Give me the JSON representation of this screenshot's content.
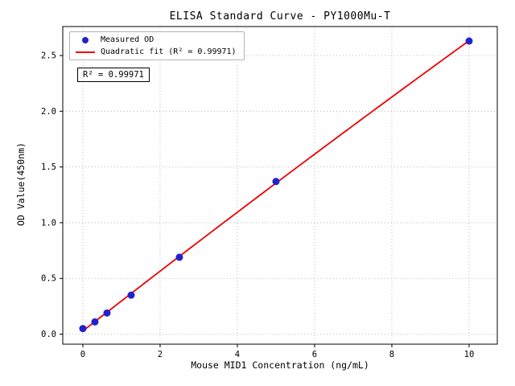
{
  "chart_data": {
    "type": "scatter",
    "title": "ELISA Standard Curve - PY1000Mu-T",
    "xlabel": "Mouse MID1 Concentration (ng/mL)",
    "ylabel": "OD Value(450nm)",
    "series": [
      {
        "name": "Measured OD",
        "type": "scatter",
        "color": "#2222cc",
        "x": [
          0,
          0.3125,
          0.625,
          1.25,
          2.5,
          5,
          10
        ],
        "y": [
          0.05,
          0.11,
          0.19,
          0.35,
          0.69,
          1.37,
          2.63
        ]
      },
      {
        "name": "Quadratic fit (R² = 0.99971)",
        "type": "line",
        "color": "#ee0000",
        "fit": "quadratic",
        "x_range": [
          0,
          10
        ]
      }
    ],
    "annotation": "R² = 0.99971",
    "xlim": [
      -0.52,
      10.73
    ],
    "ylim": [
      -0.09,
      2.76
    ],
    "x_ticks": [
      0,
      2,
      4,
      6,
      8,
      10
    ],
    "x_tick_labels": [
      "0",
      "2",
      "4",
      "6",
      "8",
      "10"
    ],
    "y_ticks": [
      0,
      0.5,
      1,
      1.5,
      2,
      2.5
    ],
    "y_tick_labels": [
      "0.0",
      "0.5",
      "1.0",
      "1.5",
      "2.0",
      "2.5"
    ],
    "grid": "dotted",
    "grid_color": "#aaaaaa",
    "legend_position": "upper-left"
  },
  "legend": {
    "items": [
      {
        "label": "Measured OD",
        "marker": "dot",
        "color": "#2222cc"
      },
      {
        "label": "Quadratic fit (R² = 0.99971)",
        "marker": "line",
        "color": "#ee0000"
      }
    ]
  }
}
